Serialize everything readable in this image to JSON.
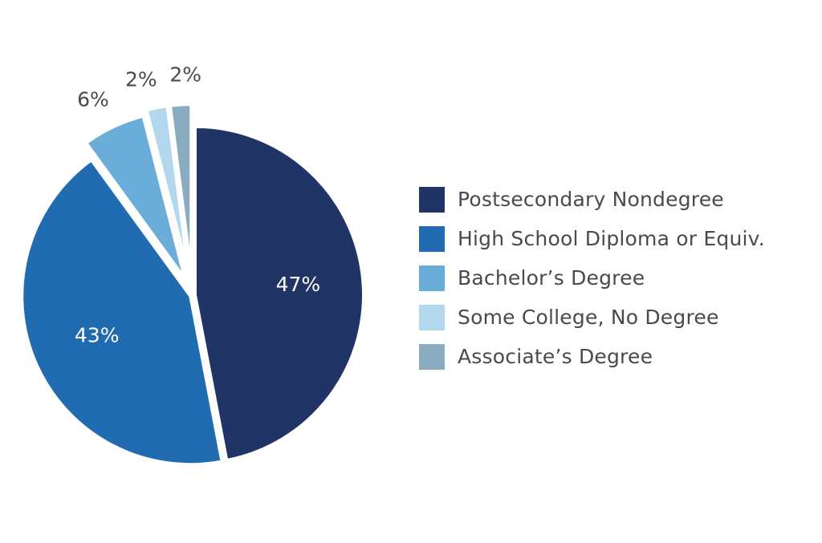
{
  "chart_data": {
    "type": "pie",
    "slices": [
      {
        "label": "Postsecondary Nondegree",
        "value": 47,
        "value_label": "47%",
        "color": "#213466"
      },
      {
        "label": "High School Diploma or Equiv.",
        "value": 43,
        "value_label": "43%",
        "color": "#216cb0"
      },
      {
        "label": "Bachelor’s Degree",
        "value": 6,
        "value_label": "6%",
        "color": "#6badd9"
      },
      {
        "label": "Some College, No Degree",
        "value": 2,
        "value_label": "2%",
        "color": "#b3d7ec"
      },
      {
        "label": "Associate’s Degree",
        "value": 2,
        "value_label": "2%",
        "color": "#8aabc0"
      }
    ],
    "legend_position": "right",
    "start_angle": "12 o'clock",
    "direction": "clockwise",
    "exploded_slices": [
      "Bachelor’s Degree",
      "Some College, No Degree",
      "Associate’s Degree"
    ],
    "label_colors": {
      "inside": "#ffffff",
      "outside": "#4a4a4a"
    }
  }
}
